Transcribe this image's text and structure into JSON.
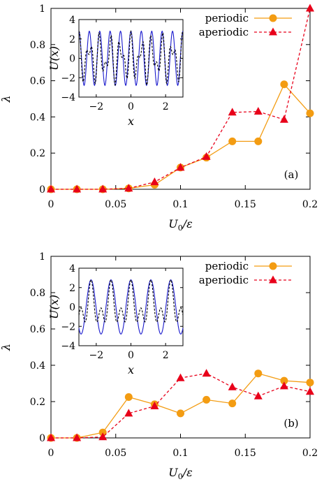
{
  "chart_data": [
    {
      "type": "line",
      "panel_label": "(a)",
      "xlabel": "U_0/ε",
      "ylabel": "λ",
      "xlim": [
        0,
        0.2
      ],
      "ylim": [
        0,
        1
      ],
      "xticks": [
        "0",
        "0.05",
        "0.1",
        "0.15",
        "0.2"
      ],
      "yticks": [
        "0",
        "0.2",
        "0.4",
        "0.6",
        "0.8",
        "1"
      ],
      "legend_position": "top-right",
      "series": [
        {
          "name": "periodic",
          "color": "#f39c12",
          "marker": "circle",
          "line_style": "solid",
          "x": [
            0,
            0.02,
            0.04,
            0.06,
            0.08,
            0.1,
            0.12,
            0.14,
            0.16,
            0.18,
            0.2
          ],
          "y": [
            0,
            0,
            0,
            0.005,
            0.025,
            0.12,
            0.175,
            0.265,
            0.265,
            0.58,
            0.42
          ]
        },
        {
          "name": "aperiodic",
          "color": "#e8001a",
          "marker": "triangle",
          "line_style": "dashed",
          "x": [
            0,
            0.02,
            0.04,
            0.06,
            0.08,
            0.1,
            0.12,
            0.14,
            0.16,
            0.18,
            0.2
          ],
          "y": [
            0,
            0,
            0,
            0.005,
            0.04,
            0.12,
            0.18,
            0.425,
            0.43,
            0.385,
            1.0
          ]
        }
      ],
      "inset": {
        "xlabel": "x",
        "ylabel": "U(x)",
        "xlim": [
          -3,
          3
        ],
        "ylim": [
          -4,
          4
        ],
        "xticks": [
          "-2",
          "0",
          "2"
        ],
        "yticks": [
          "-4",
          "-2",
          "0",
          "2",
          "4"
        ],
        "solid_color": "#1a1acd",
        "dashed_color": "#000000"
      }
    },
    {
      "type": "line",
      "panel_label": "(b)",
      "xlabel": "U_0/ε",
      "ylabel": "λ",
      "xlim": [
        0,
        0.2
      ],
      "ylim": [
        0,
        1
      ],
      "xticks": [
        "0",
        "0.05",
        "0.1",
        "0.15",
        "0.2"
      ],
      "yticks": [
        "0",
        "0.2",
        "0.4",
        "0.6",
        "0.8",
        "1"
      ],
      "legend_position": "top-right",
      "series": [
        {
          "name": "periodic",
          "color": "#f39c12",
          "marker": "circle",
          "line_style": "solid",
          "x": [
            0,
            0.02,
            0.04,
            0.06,
            0.08,
            0.1,
            0.12,
            0.14,
            0.16,
            0.18,
            0.2
          ],
          "y": [
            0,
            0,
            0.03,
            0.225,
            0.185,
            0.135,
            0.21,
            0.19,
            0.355,
            0.315,
            0.305
          ]
        },
        {
          "name": "aperiodic",
          "color": "#e8001a",
          "marker": "triangle",
          "line_style": "dashed",
          "x": [
            0,
            0.02,
            0.04,
            0.06,
            0.08,
            0.1,
            0.12,
            0.14,
            0.16,
            0.18,
            0.2
          ],
          "y": [
            0,
            0,
            0.005,
            0.135,
            0.175,
            0.33,
            0.355,
            0.28,
            0.23,
            0.285,
            0.255
          ]
        }
      ],
      "inset": {
        "xlabel": "x",
        "ylabel": "U(x)",
        "xlim": [
          -3,
          3
        ],
        "ylim": [
          -4,
          4
        ],
        "xticks": [
          "-2",
          "0",
          "2"
        ],
        "yticks": [
          "-4",
          "-2",
          "0",
          "2",
          "4"
        ],
        "solid_color": "#1a1acd",
        "dashed_color": "#000000"
      }
    }
  ]
}
